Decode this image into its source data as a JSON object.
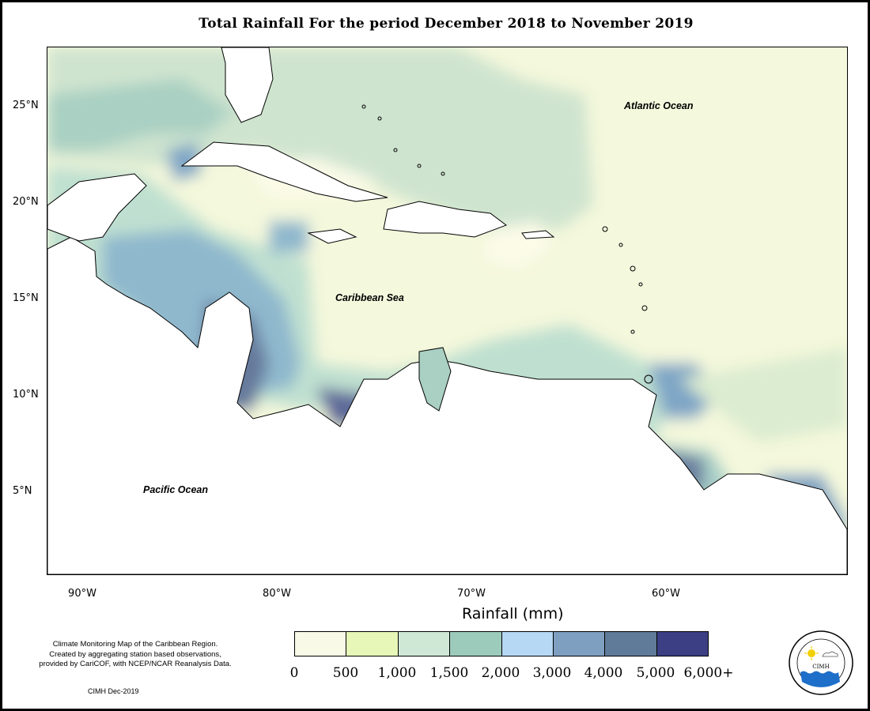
{
  "title": "Total Rainfall For the period December 2018 to November 2019",
  "latitude_labels": [
    "25°N",
    "20°N",
    "15°N",
    "10°N",
    "5°N"
  ],
  "longitude_labels": [
    "90°W",
    "80°W",
    "70°W",
    "60°W"
  ],
  "ocean_labels": {
    "atlantic": "Atlantic Ocean",
    "caribbean": "Caribbean Sea",
    "pacific": "Pacific Ocean"
  },
  "legend": {
    "title": "Rainfall (mm)",
    "ticks": [
      "0",
      "500",
      "1,000",
      "1,500",
      "2,000",
      "3,000",
      "4,000",
      "5,000",
      "6,000+"
    ],
    "colors": [
      "#f8f9e6",
      "#e6f7b8",
      "#cfe8d6",
      "#9ccbbc",
      "#b6d8f4",
      "#7f9fc1",
      "#5f7b99",
      "#3c3f83"
    ]
  },
  "notes": {
    "line1": "Climate Monitoring Map of the Caribbean Region.",
    "line2": "Created by aggregating station based observations,",
    "line3": "provided by CariCOF, with NCEP/NCAR Reanalysis Data.",
    "credit": "CIMH Dec-2019"
  },
  "logo": {
    "text": "CIMH",
    "arc_text": "Caribbean Institute for Meteorology and Hydrology"
  }
}
